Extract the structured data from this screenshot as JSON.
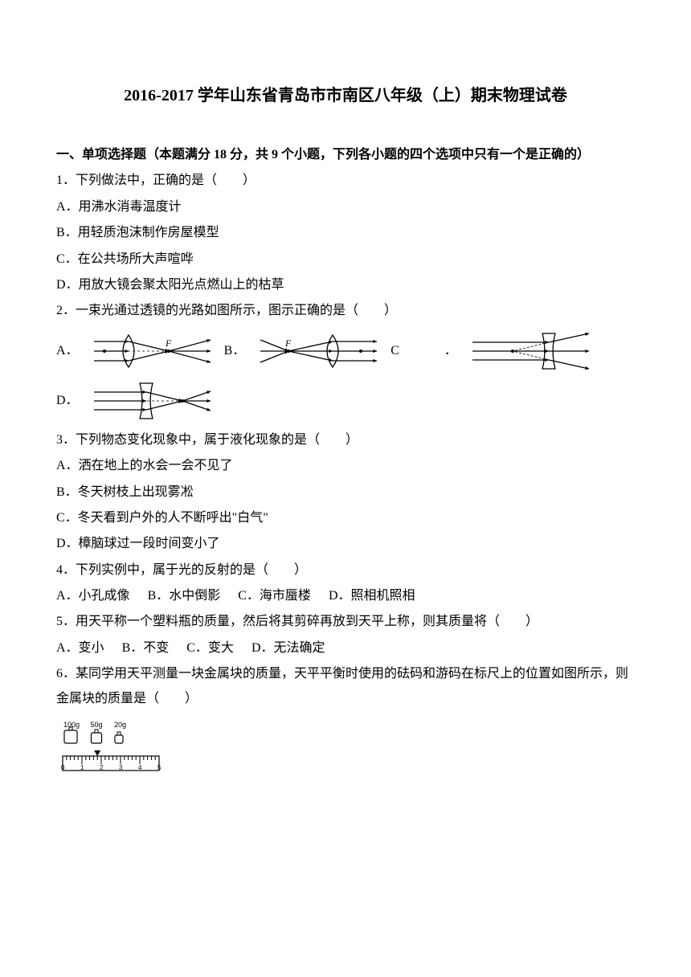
{
  "title": "2016-2017 学年山东省青岛市市南区八年级（上）期末物理试卷",
  "section1": "一、单项选择题（本题满分 18 分，共 9 个小题，下列各小题的四个选项中只有一个是正确的）",
  "q1": {
    "stem": "1．下列做法中，正确的是（　　）",
    "A": "A．用沸水消毒温度计",
    "B": "B．用轻质泡沫制作房屋模型",
    "C": "C．在公共场所大声喧哗",
    "D": "D．用放大镜会聚太阳光点燃山上的枯草"
  },
  "q2": {
    "stem": "2．一束光通过透镜的光路如图所示，图示正确的是（　　）",
    "labels": {
      "A": "A．",
      "B": "B．",
      "C": "C",
      "dot": "．",
      "D": "D．"
    },
    "diagrams": {
      "stroke": "#000000",
      "strokeWidth": 1.3,
      "arrowSize": 5,
      "fLabel": "F",
      "fLabelSize": 12
    }
  },
  "q3": {
    "stem": "3．下列物态变化现象中，属于液化现象的是（　　）",
    "A": "A．洒在地上的水会一会不见了",
    "B": "B．冬天树枝上出现雾凇",
    "C": "C．冬天看到户外的人不断呼出\"白气\"",
    "D": "D．樟脑球过一段时间变小了"
  },
  "q4": {
    "stem": "4．下列实例中，属于光的反射的是（　　）",
    "A": "A．小孔成像",
    "B": "B．水中倒影",
    "C": "C．海市蜃楼",
    "D": "D．照相机照相"
  },
  "q5": {
    "stem": "5．用天平称一个塑料瓶的质量，然后将其剪碎再放到天平上称，则其质量将（　　）",
    "A": "A．变小",
    "B": "B．不变",
    "C": "C．变大",
    "D": "D．无法确定"
  },
  "q6": {
    "stem": "6．某同学用天平测量一块金属块的质量，天平平衡时使用的砝码和游码在标尺上的位置如图所示，则金属块的质量是（　　）",
    "weights": {
      "labels": [
        "100g",
        "50g",
        "20g"
      ],
      "ruler": {
        "min": 0,
        "max": 5,
        "rider": 1.8
      },
      "fontSize": 9,
      "stroke": "#000000"
    }
  }
}
